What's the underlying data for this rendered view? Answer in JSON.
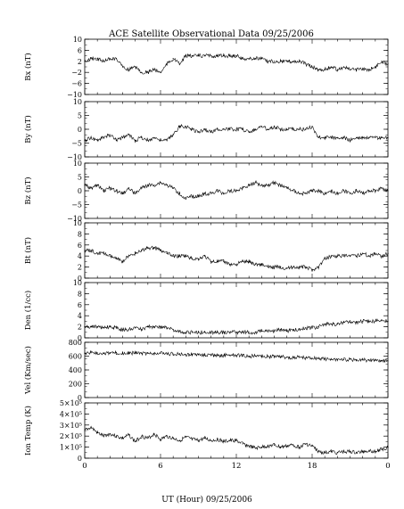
{
  "title": "ACE Satellite Observational Data   09/25/2006",
  "xaxis_label": "UT (Hour)  09/25/2006",
  "chart_data": {
    "type": "line",
    "title": "ACE Satellite Observational Data   09/25/2006",
    "xlabel": "UT (Hour)  09/25/2006",
    "x_ticks": [
      "0",
      "6",
      "12",
      "18",
      "0"
    ],
    "xlim": [
      0,
      24
    ],
    "panels": [
      {
        "ylabel": "Bx (nT)",
        "ylim": [
          -10,
          10
        ],
        "y_ticks": [
          "10",
          "6",
          "2",
          "−2",
          "−6",
          "−10"
        ],
        "y_tick_values": [
          10,
          6,
          2,
          -2,
          -6,
          -10
        ],
        "x": [
          0,
          0.5,
          1,
          1.5,
          2,
          2.5,
          3,
          3.5,
          4,
          4.5,
          5,
          5.5,
          6,
          6.5,
          7,
          7.5,
          8,
          8.5,
          9,
          9.5,
          10,
          10.5,
          11,
          11.5,
          12,
          12.5,
          13,
          13.5,
          14,
          14.5,
          15,
          15.5,
          16,
          16.5,
          17,
          17.5,
          18,
          18.5,
          19,
          19.5,
          20,
          20.5,
          21,
          21.5,
          22,
          22.5,
          23,
          23.5,
          24
        ],
        "values": [
          2,
          3,
          3,
          2,
          3,
          3,
          0,
          -1,
          0,
          -2,
          -2,
          -1,
          -2,
          1,
          3,
          1,
          4,
          4,
          4,
          4,
          4,
          4,
          4,
          4,
          4,
          3,
          3,
          3,
          3,
          2,
          2,
          2,
          2,
          2,
          2,
          1,
          0,
          -1,
          -1,
          0,
          -1,
          0,
          -1,
          -1,
          -1,
          -1,
          0,
          2,
          1
        ]
      },
      {
        "ylabel": "By (nT)",
        "ylim": [
          -10,
          10
        ],
        "y_ticks": [
          "10",
          "5",
          "0",
          "−5",
          "−10"
        ],
        "y_tick_values": [
          10,
          5,
          0,
          -5,
          -10
        ],
        "x": [
          0,
          0.5,
          1,
          1.5,
          2,
          2.5,
          3,
          3.5,
          4,
          4.5,
          5,
          5.5,
          6,
          6.5,
          7,
          7.5,
          8,
          8.5,
          9,
          9.5,
          10,
          10.5,
          11,
          11.5,
          12,
          12.5,
          13,
          13.5,
          14,
          14.5,
          15,
          15.5,
          16,
          16.5,
          17,
          17.5,
          18,
          18.5,
          19,
          19.5,
          20,
          20.5,
          21,
          21.5,
          22,
          22.5,
          23,
          23.5,
          24
        ],
        "values": [
          -4,
          -3,
          -4,
          -3,
          -2,
          -4,
          -3,
          -2,
          -4,
          -3,
          -4,
          -3,
          -4,
          -4,
          -2,
          1,
          1,
          0,
          -1,
          0,
          -1,
          0,
          0,
          0,
          0,
          0,
          -1,
          0,
          1,
          0,
          1,
          0,
          0,
          0,
          0,
          0,
          1,
          -3,
          -3,
          -3,
          -3,
          -3,
          -4,
          -3,
          -3,
          -3,
          -3,
          -3,
          -3
        ]
      },
      {
        "ylabel": "Bz (nT)",
        "ylim": [
          -10,
          10
        ],
        "y_ticks": [
          "10",
          "5",
          "0",
          "−5",
          "−10"
        ],
        "y_tick_values": [
          10,
          5,
          0,
          -5,
          -10
        ],
        "x": [
          0,
          0.5,
          1,
          1.5,
          2,
          2.5,
          3,
          3.5,
          4,
          4.5,
          5,
          5.5,
          6,
          6.5,
          7,
          7.5,
          8,
          8.5,
          9,
          9.5,
          10,
          10.5,
          11,
          11.5,
          12,
          12.5,
          13,
          13.5,
          14,
          14.5,
          15,
          15.5,
          16,
          16.5,
          17,
          17.5,
          18,
          18.5,
          19,
          19.5,
          20,
          20.5,
          21,
          21.5,
          22,
          22.5,
          23,
          23.5,
          24
        ],
        "values": [
          2,
          1,
          2,
          0,
          1,
          0,
          -1,
          1,
          -1,
          1,
          2,
          2,
          3,
          2,
          1,
          -1,
          -3,
          -2,
          -2,
          -1,
          -1,
          0,
          -1,
          0,
          0,
          1,
          2,
          3,
          2,
          2,
          3,
          2,
          1,
          0,
          -1,
          -1,
          0,
          0,
          -1,
          0,
          -1,
          0,
          -1,
          0,
          -1,
          0,
          0,
          1,
          0
        ]
      },
      {
        "ylabel": "Bt (nT)",
        "ylim": [
          0,
          10
        ],
        "y_ticks": [
          "10",
          "8",
          "6",
          "4",
          "2",
          "0"
        ],
        "y_tick_values": [
          10,
          8,
          6,
          4,
          2,
          0
        ],
        "x": [
          0,
          0.5,
          1,
          1.5,
          2,
          2.5,
          3,
          3.5,
          4,
          4.5,
          5,
          5.5,
          6,
          6.5,
          7,
          7.5,
          8,
          8.5,
          9,
          9.5,
          10,
          10.5,
          11,
          11.5,
          12,
          12.5,
          13,
          13.5,
          14,
          14.5,
          15,
          15.5,
          16,
          16.5,
          17,
          17.5,
          18,
          18.5,
          19,
          19.5,
          20,
          20.5,
          21,
          21.5,
          22,
          22.5,
          23,
          23.5,
          24
        ],
        "values": [
          5,
          5,
          4.5,
          4.5,
          4,
          3.5,
          3,
          4,
          4.5,
          5,
          5.5,
          5.5,
          5,
          4.5,
          4,
          4,
          4,
          3.5,
          3.5,
          4,
          3,
          3,
          3,
          2.5,
          2.5,
          3,
          3,
          2.5,
          2.5,
          2,
          2,
          2,
          1.8,
          2,
          2,
          2,
          1.5,
          2,
          3.5,
          4,
          4,
          4,
          4,
          4,
          4.5,
          4,
          4.5,
          4,
          4.5
        ]
      },
      {
        "ylabel": "Den (1/cc)",
        "ylim": [
          0,
          10
        ],
        "y_ticks": [
          "10",
          "8",
          "6",
          "4",
          "2",
          "0"
        ],
        "y_tick_values": [
          10,
          8,
          6,
          4,
          2,
          0
        ],
        "x": [
          0,
          0.5,
          1,
          1.5,
          2,
          2.5,
          3,
          3.5,
          4,
          4.5,
          5,
          5.5,
          6,
          6.5,
          7,
          7.5,
          8,
          8.5,
          9,
          9.5,
          10,
          10.5,
          11,
          11.5,
          12,
          12.5,
          13,
          13.5,
          14,
          14.5,
          15,
          15.5,
          16,
          16.5,
          17,
          17.5,
          18,
          18.5,
          19,
          19.5,
          20,
          20.5,
          21,
          21.5,
          22,
          22.5,
          23,
          23.5,
          24
        ],
        "values": [
          2,
          2,
          2,
          1.8,
          2,
          1.8,
          1.5,
          1.5,
          1.8,
          1.5,
          2,
          2,
          2,
          1.8,
          1.5,
          1.2,
          1,
          1,
          1,
          1,
          1,
          1,
          1,
          1,
          1,
          1,
          1,
          1,
          1.2,
          1.2,
          1.2,
          1.5,
          1.2,
          1.5,
          1.5,
          1.8,
          1.8,
          2,
          2.5,
          2.5,
          2.5,
          2.8,
          2.8,
          2.8,
          3,
          3,
          3,
          3.2,
          3
        ]
      },
      {
        "ylabel": "Vel (Km/sec)",
        "ylim": [
          0,
          800
        ],
        "y_ticks": [
          "800",
          "600",
          "400",
          "200",
          "0"
        ],
        "y_tick_values": [
          800,
          600,
          400,
          200,
          0
        ],
        "x": [
          0,
          0.5,
          1,
          1.5,
          2,
          2.5,
          3,
          3.5,
          4,
          4.5,
          5,
          5.5,
          6,
          6.5,
          7,
          7.5,
          8,
          8.5,
          9,
          9.5,
          10,
          10.5,
          11,
          11.5,
          12,
          12.5,
          13,
          13.5,
          14,
          14.5,
          15,
          15.5,
          16,
          16.5,
          17,
          17.5,
          18,
          18.5,
          19,
          19.5,
          20,
          20.5,
          21,
          21.5,
          22,
          22.5,
          23,
          23.5,
          24
        ],
        "values": [
          640,
          650,
          645,
          640,
          640,
          650,
          640,
          640,
          645,
          640,
          640,
          635,
          640,
          635,
          630,
          635,
          620,
          625,
          620,
          615,
          615,
          610,
          610,
          615,
          610,
          605,
          600,
          600,
          600,
          595,
          590,
          590,
          585,
          580,
          580,
          575,
          570,
          565,
          560,
          555,
          550,
          550,
          555,
          545,
          545,
          540,
          540,
          535,
          530
        ]
      },
      {
        "ylabel": "Ion Temp (K)",
        "ylim": [
          0,
          500000
        ],
        "y_ticks": [
          "5×10⁵",
          "4×10⁵",
          "3×10⁵",
          "2×10⁵",
          "1×10⁵",
          "0"
        ],
        "y_tick_values": [
          500000,
          400000,
          300000,
          200000,
          100000,
          0
        ],
        "x": [
          0,
          0.5,
          1,
          1.5,
          2,
          2.5,
          3,
          3.5,
          4,
          4.5,
          5,
          5.5,
          6,
          6.5,
          7,
          7.5,
          8,
          8.5,
          9,
          9.5,
          10,
          10.5,
          11,
          11.5,
          12,
          12.5,
          13,
          13.5,
          14,
          14.5,
          15,
          15.5,
          16,
          16.5,
          17,
          17.5,
          18,
          18.5,
          19,
          19.5,
          20,
          20.5,
          21,
          21.5,
          22,
          22.5,
          23,
          23.5,
          24
        ],
        "values": [
          250000,
          280000,
          230000,
          200000,
          220000,
          200000,
          180000,
          210000,
          150000,
          200000,
          180000,
          220000,
          170000,
          200000,
          180000,
          160000,
          190000,
          170000,
          160000,
          180000,
          160000,
          170000,
          150000,
          160000,
          160000,
          130000,
          110000,
          90000,
          100000,
          110000,
          120000,
          100000,
          110000,
          120000,
          100000,
          130000,
          110000,
          60000,
          50000,
          60000,
          50000,
          60000,
          60000,
          50000,
          60000,
          70000,
          60000,
          80000,
          100000
        ]
      }
    ]
  }
}
